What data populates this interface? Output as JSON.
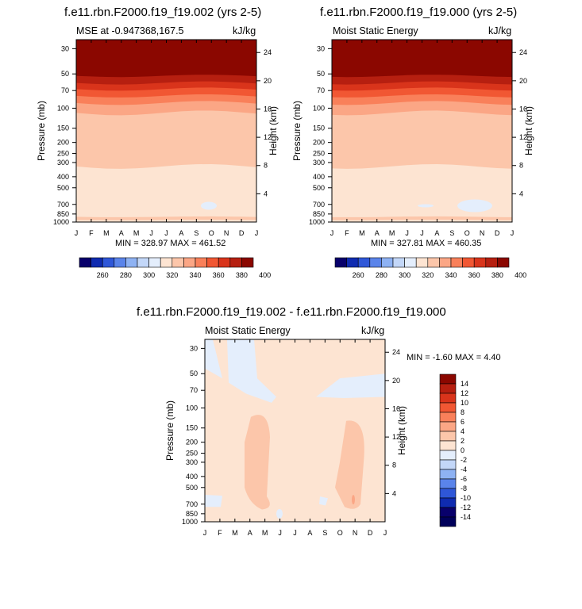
{
  "chart_data": [
    {
      "type": "heatmap",
      "title": "f.e11.rbn.F2000.f19_f19.002 (yrs 2-5)",
      "subtitle_left": "MSE at -0.947368,167.5",
      "subtitle_right": "kJ/kg",
      "ylabel_left": "Pressure (mb)",
      "ylabel_right": "Height (km)",
      "x_ticks": [
        "J",
        "F",
        "M",
        "A",
        "M",
        "J",
        "J",
        "A",
        "S",
        "O",
        "N",
        "D",
        "J"
      ],
      "pressure_ticks": [
        "30",
        "50",
        "70",
        "100",
        "150",
        "200",
        "250",
        "300",
        "400",
        "500",
        "700",
        "850",
        "1000"
      ],
      "height_ticks": [
        "24",
        "20",
        "16",
        "12",
        "8",
        "4"
      ],
      "minmax_text": "MIN = 328.97 MAX = 461.52",
      "min": 328.97,
      "max": 461.52,
      "colorbar_labels": [
        "260",
        "280",
        "300",
        "320",
        "340",
        "360",
        "380",
        "400"
      ]
    },
    {
      "type": "heatmap",
      "title": "f.e11.rbn.F2000.f19_f19.000 (yrs 2-5)",
      "subtitle_left": "Moist Static Energy",
      "subtitle_right": "kJ/kg",
      "ylabel_left": "Pressure (mb)",
      "ylabel_right": "Height (km)",
      "x_ticks": [
        "J",
        "F",
        "M",
        "A",
        "M",
        "J",
        "J",
        "A",
        "S",
        "O",
        "N",
        "D",
        "J"
      ],
      "pressure_ticks": [
        "30",
        "50",
        "70",
        "100",
        "150",
        "200",
        "250",
        "300",
        "400",
        "500",
        "700",
        "850",
        "1000"
      ],
      "height_ticks": [
        "24",
        "20",
        "16",
        "12",
        "8",
        "4"
      ],
      "minmax_text": "MIN = 327.81 MAX = 460.35",
      "min": 327.81,
      "max": 460.35,
      "colorbar_labels": [
        "260",
        "280",
        "300",
        "320",
        "340",
        "360",
        "380",
        "400"
      ]
    },
    {
      "type": "heatmap",
      "title": "f.e11.rbn.F2000.f19_f19.002 - f.e11.rbn.F2000.f19_f19.000",
      "subtitle_left": "Moist Static Energy",
      "subtitle_right": "kJ/kg",
      "ylabel_left": "Pressure (mb)",
      "ylabel_right": "Height (km)",
      "x_ticks": [
        "J",
        "F",
        "M",
        "A",
        "M",
        "J",
        "J",
        "A",
        "S",
        "O",
        "N",
        "D",
        "J"
      ],
      "pressure_ticks": [
        "30",
        "50",
        "70",
        "100",
        "150",
        "200",
        "250",
        "300",
        "400",
        "500",
        "700",
        "850",
        "1000"
      ],
      "height_ticks": [
        "24",
        "20",
        "16",
        "12",
        "8",
        "4"
      ],
      "minmax_text": "MIN =  -1.60 MAX =   4.40",
      "min": -1.6,
      "max": 4.4,
      "colorbar_labels": [
        "14",
        "12",
        "10",
        "8",
        "6",
        "4",
        "2",
        "0",
        "-2",
        "-4",
        "-6",
        "-8",
        "-10",
        "-12",
        "-14"
      ]
    }
  ],
  "colors": {
    "seq": [
      "#08006b",
      "#0f2bb0",
      "#2f57d8",
      "#5a84ea",
      "#8eb2f3",
      "#c3d7f8",
      "#e4eefc",
      "#fde4d2",
      "#fcc6aa",
      "#fba685",
      "#f9805a",
      "#f15733",
      "#d9341b",
      "#b61f10",
      "#8b0700"
    ],
    "diff": [
      "#8b0700",
      "#b61f10",
      "#d9341b",
      "#f15733",
      "#f9805a",
      "#fba685",
      "#fcc6aa",
      "#fde4d2",
      "#e4eefc",
      "#c3d7f8",
      "#8eb2f3",
      "#5a84ea",
      "#2f57d8",
      "#0f2bb0",
      "#08006b",
      "#00005a"
    ]
  }
}
